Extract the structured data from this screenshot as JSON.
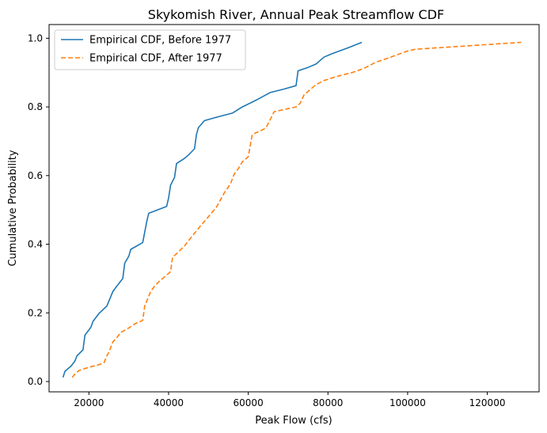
{
  "chart_data": {
    "type": "line",
    "title": "Skykomish River, Annual Peak Streamflow CDF",
    "xlabel": "Peak Flow (cfs)",
    "ylabel": "Cumulative Probability",
    "xlim": [
      10000,
      133000
    ],
    "ylim": [
      -0.03,
      1.04
    ],
    "xticks": [
      20000,
      40000,
      60000,
      80000,
      100000,
      120000
    ],
    "xtick_labels": [
      "20000",
      "40000",
      "60000",
      "80000",
      "100000",
      "120000"
    ],
    "yticks": [
      0.0,
      0.2,
      0.4,
      0.6,
      0.8,
      1.0
    ],
    "ytick_labels": [
      "0.0",
      "0.2",
      "0.4",
      "0.6",
      "0.8",
      "1.0"
    ],
    "grid": false,
    "legend": "top-left",
    "series": [
      {
        "name": "Empirical CDF, Before 1977",
        "color": "#1f77b4",
        "style": "solid",
        "x": [
          13500,
          14000,
          15500,
          16500,
          17000,
          18500,
          19000,
          20500,
          21000,
          22500,
          24500,
          26000,
          27000,
          28500,
          29000,
          30000,
          30500,
          33500,
          34500,
          35000,
          39500,
          40000,
          40500,
          41500,
          42000,
          44000,
          45000,
          46500,
          47000,
          47500,
          49000,
          52000,
          56000,
          58500,
          62000,
          65500,
          69000,
          72000,
          72500,
          75000,
          77000,
          79000,
          81000,
          85000,
          88500
        ],
        "y": [
          0.012,
          0.03,
          0.045,
          0.06,
          0.075,
          0.092,
          0.135,
          0.158,
          0.175,
          0.198,
          0.22,
          0.262,
          0.278,
          0.3,
          0.345,
          0.365,
          0.385,
          0.405,
          0.465,
          0.49,
          0.51,
          0.535,
          0.572,
          0.595,
          0.635,
          0.65,
          0.66,
          0.678,
          0.72,
          0.74,
          0.76,
          0.77,
          0.782,
          0.8,
          0.82,
          0.842,
          0.852,
          0.862,
          0.905,
          0.915,
          0.925,
          0.945,
          0.955,
          0.972,
          0.988
        ]
      },
      {
        "name": "Empirical CDF, After 1977",
        "color": "#ff7f0e",
        "style": "dashed",
        "x": [
          15800,
          16500,
          17500,
          19000,
          20500,
          22500,
          23800,
          24500,
          25000,
          25500,
          26000,
          27000,
          28000,
          30000,
          31500,
          33500,
          34000,
          35500,
          36500,
          37500,
          38500,
          40500,
          41000,
          42500,
          44000,
          46000,
          48000,
          50000,
          52000,
          54000,
          55500,
          56500,
          57500,
          58500,
          60000,
          61000,
          63000,
          64000,
          64500,
          66500,
          70000,
          72000,
          73000,
          74000,
          76000,
          77000,
          79000,
          82000,
          86000,
          89000,
          92000,
          96000,
          100000,
          102000,
          128500
        ],
        "y": [
          0.012,
          0.022,
          0.032,
          0.038,
          0.043,
          0.049,
          0.055,
          0.075,
          0.085,
          0.1,
          0.115,
          0.128,
          0.143,
          0.156,
          0.168,
          0.178,
          0.22,
          0.262,
          0.278,
          0.29,
          0.3,
          0.32,
          0.362,
          0.378,
          0.395,
          0.425,
          0.453,
          0.48,
          0.508,
          0.55,
          0.575,
          0.605,
          0.62,
          0.64,
          0.655,
          0.72,
          0.73,
          0.736,
          0.74,
          0.786,
          0.795,
          0.8,
          0.81,
          0.835,
          0.855,
          0.865,
          0.877,
          0.888,
          0.9,
          0.912,
          0.93,
          0.946,
          0.963,
          0.968,
          0.988
        ]
      }
    ]
  }
}
